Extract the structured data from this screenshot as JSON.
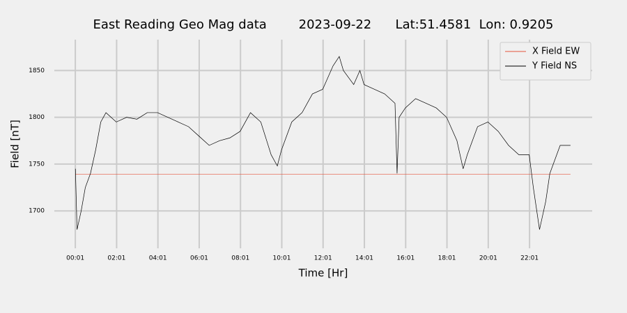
{
  "chart_data": {
    "type": "line",
    "title": "East Reading Geo Mag data        2023-09-22      Lat:51.4581  Lon: 0.9205",
    "xlabel": "Time  [Hr]",
    "ylabel": "Field  [nT]",
    "x": [
      0.02,
      0.1,
      0.3,
      0.5,
      0.75,
      1.0,
      1.25,
      1.5,
      2.0,
      2.5,
      3.0,
      3.5,
      4.0,
      4.5,
      5.0,
      5.5,
      6.0,
      6.5,
      7.0,
      7.5,
      8.0,
      8.5,
      9.0,
      9.5,
      9.8,
      10.0,
      10.5,
      11.0,
      11.5,
      12.0,
      12.5,
      12.8,
      13.0,
      13.5,
      13.8,
      14.0,
      14.5,
      15.0,
      15.5,
      15.6,
      15.7,
      16.0,
      16.5,
      17.0,
      17.5,
      18.0,
      18.5,
      18.8,
      19.0,
      19.5,
      20.0,
      20.5,
      21.0,
      21.5,
      22.0,
      22.2,
      22.5,
      22.8,
      23.0,
      23.5,
      24.0
    ],
    "series": [
      {
        "name": "X Field EW",
        "color": "#e5533d",
        "width": 0.6,
        "values": [
          1739,
          1739,
          1739,
          1739,
          1739,
          1739,
          1739,
          1739,
          1739,
          1739,
          1739,
          1739,
          1739,
          1739,
          1739,
          1739,
          1739,
          1739,
          1739,
          1739,
          1739,
          1739,
          1739,
          1739,
          1739,
          1739,
          1739,
          1739,
          1739,
          1739,
          1739,
          1739,
          1739,
          1739,
          1739,
          1739,
          1739,
          1739,
          1739,
          1739,
          1739,
          1739,
          1739,
          1739,
          1739,
          1739,
          1739,
          1739,
          1739,
          1739,
          1739,
          1739,
          1739,
          1739,
          1739,
          1739,
          1739,
          1739,
          1739,
          1739,
          1739
        ]
      },
      {
        "name": "Y Field NS",
        "color": "#000000",
        "width": 0.7,
        "values": [
          1745,
          1680,
          1700,
          1725,
          1740,
          1765,
          1795,
          1805,
          1795,
          1800,
          1798,
          1805,
          1805,
          1800,
          1795,
          1790,
          1780,
          1770,
          1775,
          1778,
          1785,
          1805,
          1795,
          1760,
          1748,
          1765,
          1795,
          1805,
          1825,
          1830,
          1855,
          1865,
          1850,
          1835,
          1850,
          1835,
          1830,
          1825,
          1815,
          1740,
          1800,
          1810,
          1820,
          1815,
          1810,
          1800,
          1775,
          1745,
          1760,
          1790,
          1795,
          1785,
          1770,
          1760,
          1760,
          1725,
          1680,
          1710,
          1740,
          1770,
          1770
        ]
      }
    ],
    "xlim": [
      -1.0,
      25.05
    ],
    "ylim": [
      1660,
      1883
    ],
    "xticks": [
      {
        "value": 0.0167,
        "label": "00:01"
      },
      {
        "value": 2.0167,
        "label": "02:01"
      },
      {
        "value": 4.0167,
        "label": "04:01"
      },
      {
        "value": 6.0167,
        "label": "06:01"
      },
      {
        "value": 8.0167,
        "label": "08:01"
      },
      {
        "value": 10.0167,
        "label": "10:01"
      },
      {
        "value": 12.0167,
        "label": "12:01"
      },
      {
        "value": 14.0167,
        "label": "14:01"
      },
      {
        "value": 16.0167,
        "label": "16:01"
      },
      {
        "value": 18.0167,
        "label": "18:01"
      },
      {
        "value": 20.0167,
        "label": "20:01"
      },
      {
        "value": 22.0167,
        "label": "22:01"
      }
    ],
    "yticks": [
      1700,
      1750,
      1800,
      1850
    ],
    "grid": true,
    "legend": "upper right"
  }
}
